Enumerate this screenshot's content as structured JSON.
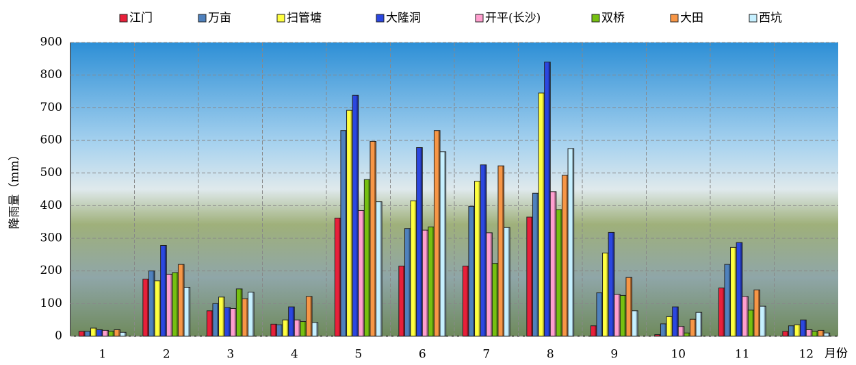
{
  "chart_data": {
    "type": "bar",
    "y_label": "降雨量（mm）",
    "x_label": "月份",
    "categories": [
      "1",
      "2",
      "3",
      "4",
      "5",
      "6",
      "7",
      "8",
      "9",
      "10",
      "11",
      "12"
    ],
    "series": [
      {
        "name": "江门",
        "color": "#e8203a",
        "values": [
          15,
          175,
          78,
          37,
          362,
          215,
          215,
          365,
          32,
          5,
          148,
          15
        ]
      },
      {
        "name": "万亩",
        "color": "#4f81bd",
        "values": [
          15,
          200,
          100,
          35,
          630,
          330,
          398,
          438,
          133,
          38,
          220,
          32
        ]
      },
      {
        "name": "扫管塘",
        "color": "#ffff40",
        "values": [
          25,
          170,
          120,
          50,
          692,
          415,
          475,
          745,
          255,
          60,
          272,
          35
        ]
      },
      {
        "name": "大隆洞",
        "color": "#2b47e0",
        "values": [
          20,
          278,
          88,
          90,
          738,
          578,
          525,
          840,
          318,
          90,
          287,
          50
        ]
      },
      {
        "name": "开平(长沙)",
        "color": "#ff9fcf",
        "values": [
          18,
          190,
          85,
          50,
          385,
          325,
          317,
          443,
          128,
          30,
          122,
          20
        ]
      },
      {
        "name": "双桥",
        "color": "#76c011",
        "values": [
          15,
          195,
          145,
          45,
          480,
          335,
          223,
          388,
          125,
          10,
          80,
          15
        ]
      },
      {
        "name": "大田",
        "color": "#f79646",
        "values": [
          20,
          220,
          115,
          122,
          597,
          630,
          522,
          493,
          180,
          52,
          142,
          18
        ]
      },
      {
        "name": "西坑",
        "color": "#c6f0ff",
        "values": [
          12,
          150,
          135,
          42,
          412,
          565,
          333,
          575,
          78,
          73,
          92,
          10
        ]
      }
    ],
    "ylim": [
      0,
      900
    ],
    "yticks": [
      0,
      100,
      200,
      300,
      400,
      500,
      600,
      700,
      800,
      900
    ],
    "grid": true
  }
}
